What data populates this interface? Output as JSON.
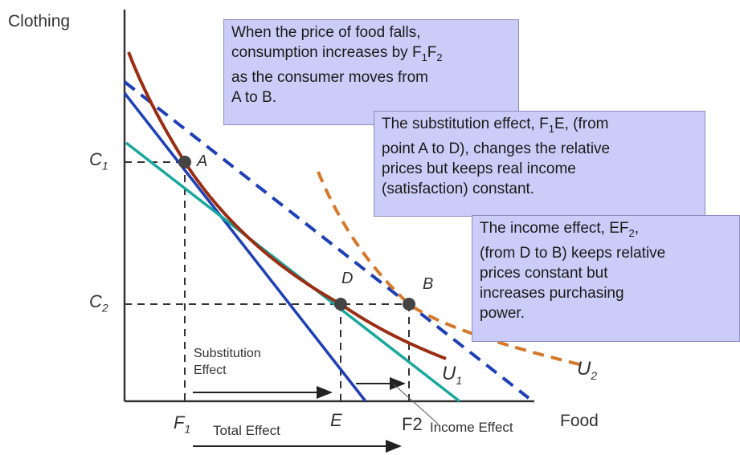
{
  "axes": {
    "y_label": "Clothing",
    "x_label": "Food"
  },
  "points": {
    "a": "A",
    "b": "B",
    "d": "D"
  },
  "y_ticks": {
    "c1": "C",
    "c1_sub": "1",
    "c2": "C",
    "c2_sub": "2"
  },
  "x_ticks": {
    "f1": "F",
    "f1_sub": "1",
    "e": "E",
    "f2": "F",
    "f2_sub": "2"
  },
  "curves": {
    "u1": "U",
    "u1_sub": "1",
    "u2": "U",
    "u2_sub": "2"
  },
  "effects": {
    "substitution_line1": "Substitution",
    "substitution_line2": "Effect",
    "total": "Total Effect",
    "income": "Income Effect"
  },
  "callouts": {
    "price_fall": {
      "l1": "When the price of food falls,",
      "l2_pre": "consumption increases by F",
      "l2_s1": "1",
      "l2_mid": "F",
      "l2_s2": "2",
      "l3": "as the consumer moves from",
      "l4": "A to B."
    },
    "substitution": {
      "l1_pre": "The substitution effect, F",
      "l1_s1": "1",
      "l1_post": "E,  (from",
      "l2": "point A to D), changes the  relative",
      "l3": "prices but keeps real income",
      "l4": "(satisfaction) constant."
    },
    "income": {
      "l1_pre": "The income effect, EF",
      "l1_s1": "2",
      "l1_post": ",",
      "l2": "(from D to B) keeps relative",
      "l3": "prices constant but",
      "l4": "increases purchasing",
      "l5": "power."
    }
  },
  "colors": {
    "budget_original": "#1f3fb4",
    "budget_new": "#1f3fb4",
    "budget_compensated": "#1aa89c",
    "indifference_u1": "#9a2e14",
    "indifference_u2": "#d4782a",
    "point": "#444444",
    "callout_fill": "#ccccf8"
  }
}
